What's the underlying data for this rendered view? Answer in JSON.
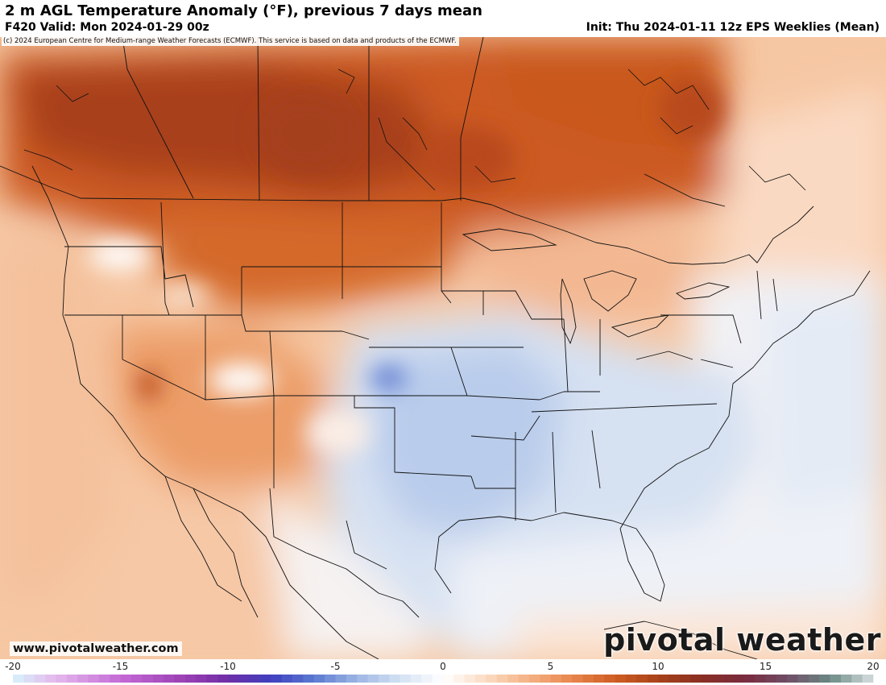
{
  "header": {
    "title": "2 m AGL Temperature Anomaly (°F), previous 7 days mean",
    "valid": "F420 Valid: Mon 2024-01-29 00z",
    "init": "Init: Thu 2024-01-11 12z EPS Weeklies (Mean)"
  },
  "map": {
    "copyright": "(c) 2024 European Centre for Medium-range Weather Forecasts (ECMWF). This service is based on data and products of the ECMWF.",
    "site_url": "www.pivotalweather.com",
    "brand": "pivotal weather"
  },
  "colorbar": {
    "min": -20,
    "max": 20,
    "tick_labels": [
      "-20",
      "-15",
      "-10",
      "-5",
      "0",
      "5",
      "10",
      "15",
      "20"
    ],
    "tick_values": [
      -20,
      -15,
      -10,
      -5,
      0,
      5,
      10,
      15,
      20
    ],
    "stops": [
      {
        "v": -20,
        "c": "#d6f2fb"
      },
      {
        "v": -18,
        "c": "#e5b8ec"
      },
      {
        "v": -15,
        "c": "#c46ad6"
      },
      {
        "v": -12,
        "c": "#9a3fb3"
      },
      {
        "v": -10,
        "c": "#6f2ea8"
      },
      {
        "v": -8,
        "c": "#3f3fbf"
      },
      {
        "v": -6,
        "c": "#5b79d1"
      },
      {
        "v": -4,
        "c": "#9db5e3"
      },
      {
        "v": -2,
        "c": "#d3e1f3"
      },
      {
        "v": 0,
        "c": "#ffffff"
      },
      {
        "v": 2,
        "c": "#fbdcc3"
      },
      {
        "v": 4,
        "c": "#f4b183"
      },
      {
        "v": 6,
        "c": "#e8864d"
      },
      {
        "v": 8,
        "c": "#cf5d22"
      },
      {
        "v": 10,
        "c": "#a8421a"
      },
      {
        "v": 12,
        "c": "#8a2e22"
      },
      {
        "v": 14,
        "c": "#7a2a3e"
      },
      {
        "v": 16,
        "c": "#6f4d66"
      },
      {
        "v": 18,
        "c": "#6b8a85"
      },
      {
        "v": 20,
        "c": "#d8dfe0"
      }
    ]
  }
}
